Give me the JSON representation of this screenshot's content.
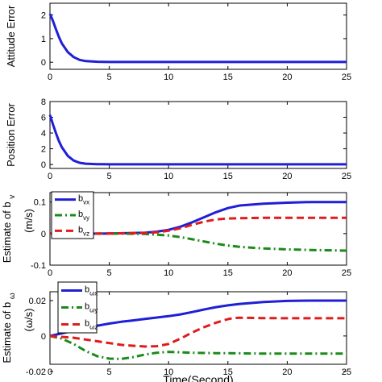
{
  "chart_data": [
    {
      "type": "line",
      "ylabel": "Attitude Error",
      "xlim": [
        0,
        25
      ],
      "ylim": [
        -0.3,
        2.5
      ],
      "xticks": [
        "0",
        "5",
        "10",
        "15",
        "20",
        "25"
      ],
      "yticks": [
        "0",
        "1",
        "2"
      ],
      "series": [
        {
          "color": "#1f1fd6",
          "style": "solid",
          "x": [
            0,
            0.25,
            0.5,
            0.75,
            1,
            1.5,
            2,
            2.5,
            3,
            4,
            5,
            10,
            15,
            20,
            25
          ],
          "values": [
            2.05,
            1.75,
            1.4,
            1.08,
            0.8,
            0.43,
            0.22,
            0.1,
            0.05,
            0.02,
            0.01,
            0.01,
            0.01,
            0.01,
            0.01
          ]
        }
      ]
    },
    {
      "type": "line",
      "ylabel": "Position Error",
      "xlim": [
        0,
        25
      ],
      "ylim": [
        -0.5,
        8
      ],
      "xticks": [
        "0",
        "5",
        "10",
        "15",
        "20",
        "25"
      ],
      "yticks": [
        "0",
        "2",
        "4",
        "6",
        "8"
      ],
      "series": [
        {
          "color": "#1f1fd6",
          "style": "solid",
          "x": [
            0,
            0.25,
            0.5,
            0.75,
            1,
            1.5,
            2,
            2.5,
            3,
            4,
            5,
            10,
            15,
            20,
            25
          ],
          "values": [
            6.3,
            5.1,
            4.0,
            3.0,
            2.2,
            1.1,
            0.5,
            0.22,
            0.1,
            0.04,
            0.02,
            0.02,
            0.02,
            0.02,
            0.02
          ]
        }
      ]
    },
    {
      "type": "line",
      "ylabel_main": "Estimate of b",
      "ylabel_sub": "v",
      "ylabel_unit": "(m/s)",
      "xlim": [
        0,
        25
      ],
      "ylim": [
        -0.1,
        0.13
      ],
      "xticks": [
        "0",
        "5",
        "10",
        "15",
        "20",
        "25"
      ],
      "yticks": [
        "-0.1",
        "0",
        "0.1"
      ],
      "legend": [
        "vx",
        "vy",
        "vz"
      ],
      "series": [
        {
          "name": "b_vx",
          "color": "#1f1fd6",
          "style": "solid",
          "x": [
            0,
            2,
            4,
            6,
            8,
            9,
            10,
            11,
            12,
            13,
            14,
            15,
            16,
            18,
            20,
            22,
            25
          ],
          "values": [
            0,
            0,
            0,
            0.001,
            0.003,
            0.006,
            0.012,
            0.022,
            0.036,
            0.052,
            0.068,
            0.081,
            0.089,
            0.095,
            0.098,
            0.1,
            0.1
          ]
        },
        {
          "name": "b_vy",
          "color": "#1a8a1a",
          "style": "dashdot",
          "x": [
            0,
            2,
            4,
            6,
            8,
            10,
            11,
            12,
            13,
            14,
            15,
            16,
            18,
            20,
            22,
            25
          ],
          "values": [
            0,
            0,
            0,
            0,
            -0.001,
            -0.006,
            -0.011,
            -0.018,
            -0.025,
            -0.032,
            -0.038,
            -0.042,
            -0.047,
            -0.05,
            -0.052,
            -0.054
          ]
        },
        {
          "name": "b_vz",
          "color": "#e01b1b",
          "style": "dashed",
          "x": [
            0,
            2,
            4,
            6,
            8,
            9,
            10,
            11,
            12,
            13,
            14,
            15,
            16,
            18,
            20,
            25
          ],
          "values": [
            0,
            0,
            0,
            0.001,
            0.002,
            0.004,
            0.009,
            0.017,
            0.028,
            0.038,
            0.045,
            0.048,
            0.049,
            0.05,
            0.05,
            0.05
          ]
        }
      ]
    },
    {
      "type": "line",
      "ylabel_main": "Estimate of b",
      "ylabel_sub": "ω",
      "ylabel_unit": "(ω/s)",
      "xlim": [
        0,
        25
      ],
      "ylim": [
        -0.016,
        0.025
      ],
      "xticks": [
        "0",
        "5",
        "10",
        "15",
        "20",
        "25"
      ],
      "yticks": [
        "-0.02",
        "0",
        "0.02"
      ],
      "legend": [
        "ωx",
        "ωy",
        "ωz"
      ],
      "series": [
        {
          "name": "b_ωx",
          "color": "#1f1fd6",
          "style": "solid",
          "x": [
            0,
            1,
            2,
            3,
            4,
            5,
            6,
            7,
            8,
            9,
            10,
            11,
            12,
            13,
            14,
            15,
            16,
            18,
            20,
            22,
            25
          ],
          "values": [
            0,
            0.0015,
            0.003,
            0.0045,
            0.0058,
            0.007,
            0.008,
            0.0088,
            0.0096,
            0.0104,
            0.0112,
            0.0122,
            0.0135,
            0.015,
            0.0163,
            0.0173,
            0.0181,
            0.0192,
            0.0198,
            0.02,
            0.02
          ]
        },
        {
          "name": "b_ωy",
          "color": "#1a8a1a",
          "style": "dashdot",
          "x": [
            0,
            1,
            2,
            3,
            4,
            5,
            6,
            7,
            8,
            9,
            10,
            11,
            12,
            14,
            16,
            18,
            20,
            25
          ],
          "values": [
            0,
            -0.0015,
            -0.0045,
            -0.0085,
            -0.0115,
            -0.0128,
            -0.013,
            -0.012,
            -0.0105,
            -0.0095,
            -0.009,
            -0.0092,
            -0.0095,
            -0.0097,
            -0.0098,
            -0.01,
            -0.01,
            -0.01
          ]
        },
        {
          "name": "b_ωz",
          "color": "#e01b1b",
          "style": "dashed",
          "x": [
            0,
            1,
            2,
            3,
            4,
            5,
            6,
            7,
            8,
            9,
            10,
            11,
            12,
            13,
            14,
            15,
            15.5,
            16,
            18,
            20,
            25
          ],
          "values": [
            0,
            -0.0005,
            -0.001,
            -0.002,
            -0.003,
            -0.004,
            -0.005,
            -0.0055,
            -0.006,
            -0.0058,
            -0.0045,
            -0.0015,
            0.002,
            0.005,
            0.0075,
            0.0095,
            0.0102,
            0.0103,
            0.0101,
            0.01,
            0.01
          ]
        }
      ]
    }
  ],
  "xlabel": "Time(Second)"
}
